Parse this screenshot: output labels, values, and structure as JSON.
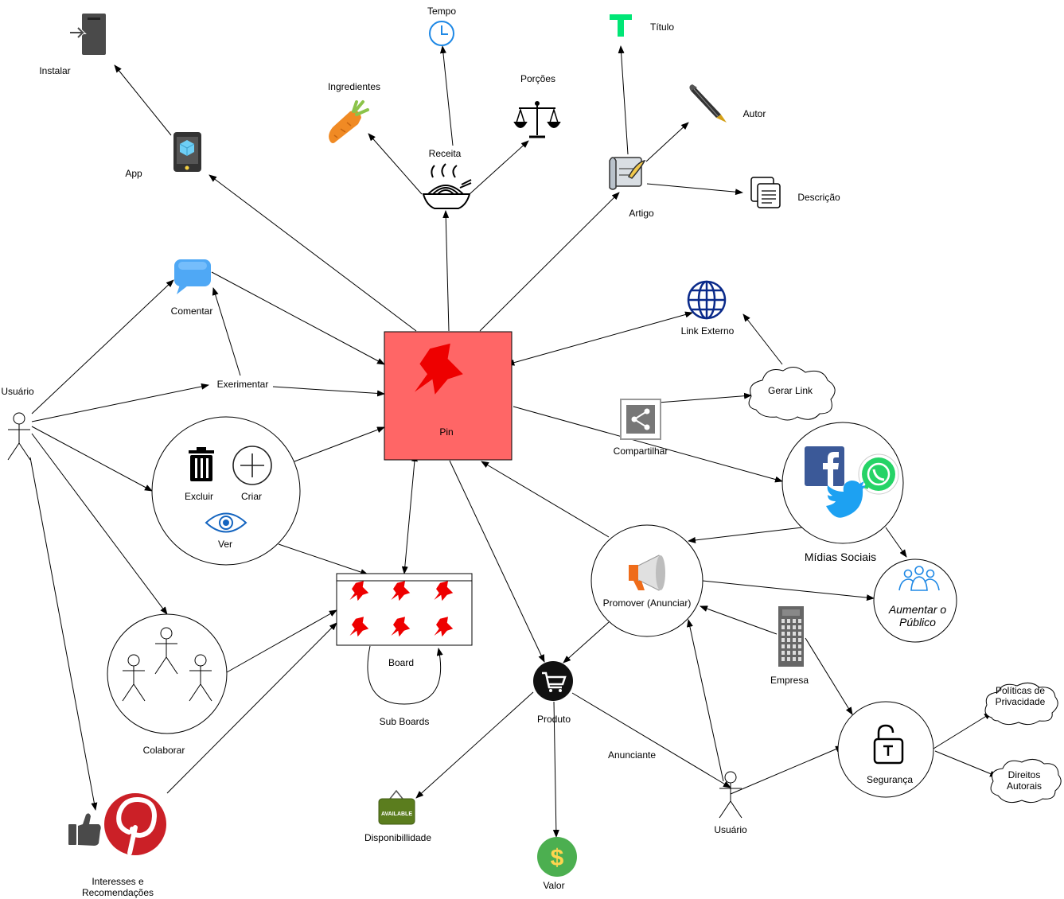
{
  "diagram": {
    "pin": "Pin",
    "usuario_left": "Usuário",
    "usuario_right": "Usuário",
    "comentar": "Comentar",
    "exerimentar": "Exerimentar",
    "excluir": "Excluir",
    "criar": "Criar",
    "ver": "Ver",
    "colaborar": "Colaborar",
    "interesses": "Interesses e Recomendações",
    "app": "App",
    "instalar": "Instalar",
    "receita": "Receita",
    "tempo": "Tempo",
    "ingredientes": "Ingredientes",
    "porcoes": "Porções",
    "artigo": "Artigo",
    "titulo": "Título",
    "autor": "Autor",
    "descricao": "Descrição",
    "link_externo": "Link Externo",
    "gerar_link": "Gerar Link",
    "compartilhar": "Compartilhar",
    "midias_sociais": "Mídias Sociais",
    "aumentar_publico": "Aumentar o Público",
    "promover": "Promover (Anunciar)",
    "empresa": "Empresa",
    "seguranca": "Segurança",
    "politicas": "Políticas de Privacidade",
    "direitos": "Direitos Autorais",
    "board": "Board",
    "sub_boards": "Sub Boards",
    "produto": "Produto",
    "disponibilidade": "Disponibillidade",
    "valor": "Valor",
    "anunciante": "Anunciante",
    "available_sign": "AVAILABLE",
    "dollar_sign": "$"
  },
  "icons": {
    "pin_color": "#ff6666",
    "pushpin_color": "#ee0000",
    "chat_color": "#4fa8f5",
    "globe_color": "#0a2a8a",
    "facebook_color": "#3b5998",
    "whatsapp_color": "#25d366",
    "twitter_color": "#1da1f2",
    "pinterest_color": "#cb2027",
    "value_color": "#4caf50",
    "title_color": "#00e676",
    "clock_color": "#1e88e5"
  }
}
